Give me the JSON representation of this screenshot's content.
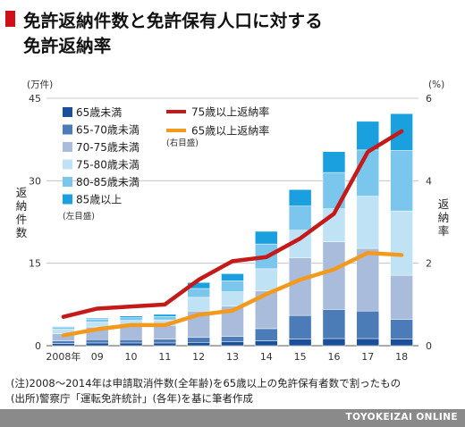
{
  "title": {
    "line1": "免許返納件数と免許保有人口に対する",
    "line2": "免許返納率",
    "marker_color": "#d01018"
  },
  "chart_data": {
    "type": "bar",
    "stacked": true,
    "categories": [
      "2008年",
      "09",
      "10",
      "11",
      "12",
      "13",
      "14",
      "15",
      "16",
      "17",
      "18"
    ],
    "left_axis": {
      "unit_label": "(万件)",
      "label": "返納件数",
      "ticks": [
        "0",
        "15",
        "30",
        "45"
      ],
      "ylim": [
        0,
        45
      ]
    },
    "right_axis": {
      "unit_label": "(%)",
      "label": "返納率",
      "ticks": [
        "0",
        "2",
        "4",
        "6"
      ],
      "ylim": [
        0,
        6
      ]
    },
    "series": [
      {
        "name": "65歳未満",
        "color": "#1c4f99",
        "axis": "left",
        "values": [
          0.4,
          0.5,
          0.5,
          0.5,
          0.6,
          0.7,
          0.9,
          1.2,
          1.3,
          1.3,
          1.2
        ]
      },
      {
        "name": "65-70歳未満",
        "color": "#4c7cb8",
        "axis": "left",
        "values": [
          0.5,
          0.6,
          0.6,
          0.7,
          0.9,
          1.0,
          2.2,
          4.3,
          5.3,
          5.0,
          3.6
        ]
      },
      {
        "name": "70-75歳未満",
        "color": "#a9bcdb",
        "axis": "left",
        "values": [
          1.3,
          2.3,
          2.5,
          2.5,
          4.8,
          5.5,
          6.9,
          10.5,
          12.3,
          11.4,
          8.0
        ]
      },
      {
        "name": "75-80歳未満",
        "color": "#bfe3f4",
        "axis": "left",
        "values": [
          0.8,
          0.9,
          1.0,
          1.0,
          2.5,
          2.6,
          4.0,
          5.0,
          6.0,
          9.5,
          11.7
        ]
      },
      {
        "name": "80-85歳未満",
        "color": "#7bc6ec",
        "axis": "left",
        "values": [
          0.4,
          0.5,
          0.5,
          0.6,
          1.6,
          2.0,
          4.5,
          4.4,
          6.6,
          8.4,
          11.0
        ]
      },
      {
        "name": "85歳以上",
        "color": "#1aa0de",
        "axis": "left",
        "values": [
          0.1,
          0.2,
          0.3,
          0.4,
          1.1,
          1.3,
          2.3,
          3.0,
          3.8,
          5.2,
          6.7
        ]
      },
      {
        "name": "75歳以上返納率",
        "color": "#c41a1a",
        "axis": "right",
        "type": "line",
        "values": [
          0.7,
          0.9,
          0.95,
          1.0,
          1.6,
          2.05,
          2.15,
          2.6,
          3.2,
          4.7,
          5.2
        ]
      },
      {
        "name": "65歳以上返納率",
        "color": "#f39a1e",
        "axis": "right",
        "type": "line",
        "values": [
          0.25,
          0.4,
          0.5,
          0.5,
          0.75,
          0.85,
          1.25,
          1.6,
          1.85,
          2.25,
          2.2
        ]
      }
    ],
    "legend_note_left": "(左目盛)",
    "legend_note_right": "(右目盛)",
    "grid": true
  },
  "notes": {
    "line1": "(注)2008～2014年は申請取消件数(全年齢)を65歳以上の免許保有者数で割ったもの",
    "line2": "(出所)警察庁「運転免許統計」(各年)を基に筆者作成"
  },
  "footer": {
    "text": "TOYOKEIZAI ONLINE"
  }
}
